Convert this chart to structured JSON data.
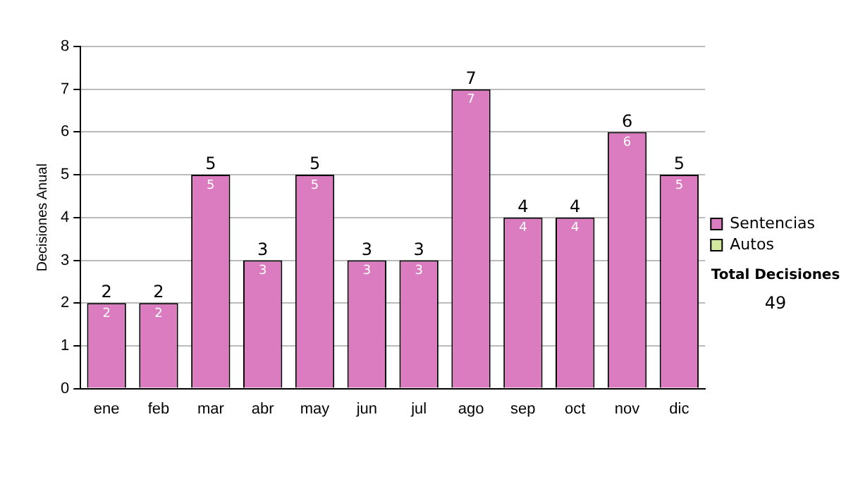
{
  "chart_data": {
    "type": "bar",
    "ylabel": "Decisiones Anual",
    "categories": [
      "ene",
      "feb",
      "mar",
      "abr",
      "may",
      "jun",
      "jul",
      "ago",
      "sep",
      "oct",
      "nov",
      "dic"
    ],
    "series": [
      {
        "name": "Sentencias",
        "color": "#dc7cc0",
        "values": [
          2,
          2,
          5,
          3,
          5,
          3,
          3,
          7,
          4,
          4,
          6,
          5
        ],
        "value_labels": [
          "2",
          "2",
          "5",
          "3",
          "5",
          "3",
          "3",
          "7",
          "4",
          "4",
          "6",
          "5"
        ]
      },
      {
        "name": "Autos",
        "color": "#d4e8a0",
        "values": [
          0,
          0,
          0,
          0,
          0,
          0,
          0,
          0,
          0,
          0,
          0,
          0
        ]
      }
    ],
    "stacked": true,
    "totals": [
      "2",
      "2",
      "5",
      "3",
      "5",
      "3",
      "3",
      "7",
      "4",
      "4",
      "6",
      "5"
    ],
    "ylim": [
      0,
      8
    ],
    "yticks": [
      0,
      1,
      2,
      3,
      4,
      5,
      6,
      7,
      8
    ],
    "grid": "y",
    "legend": "right",
    "annotations": [
      "Total Decisiones",
      "49"
    ]
  }
}
